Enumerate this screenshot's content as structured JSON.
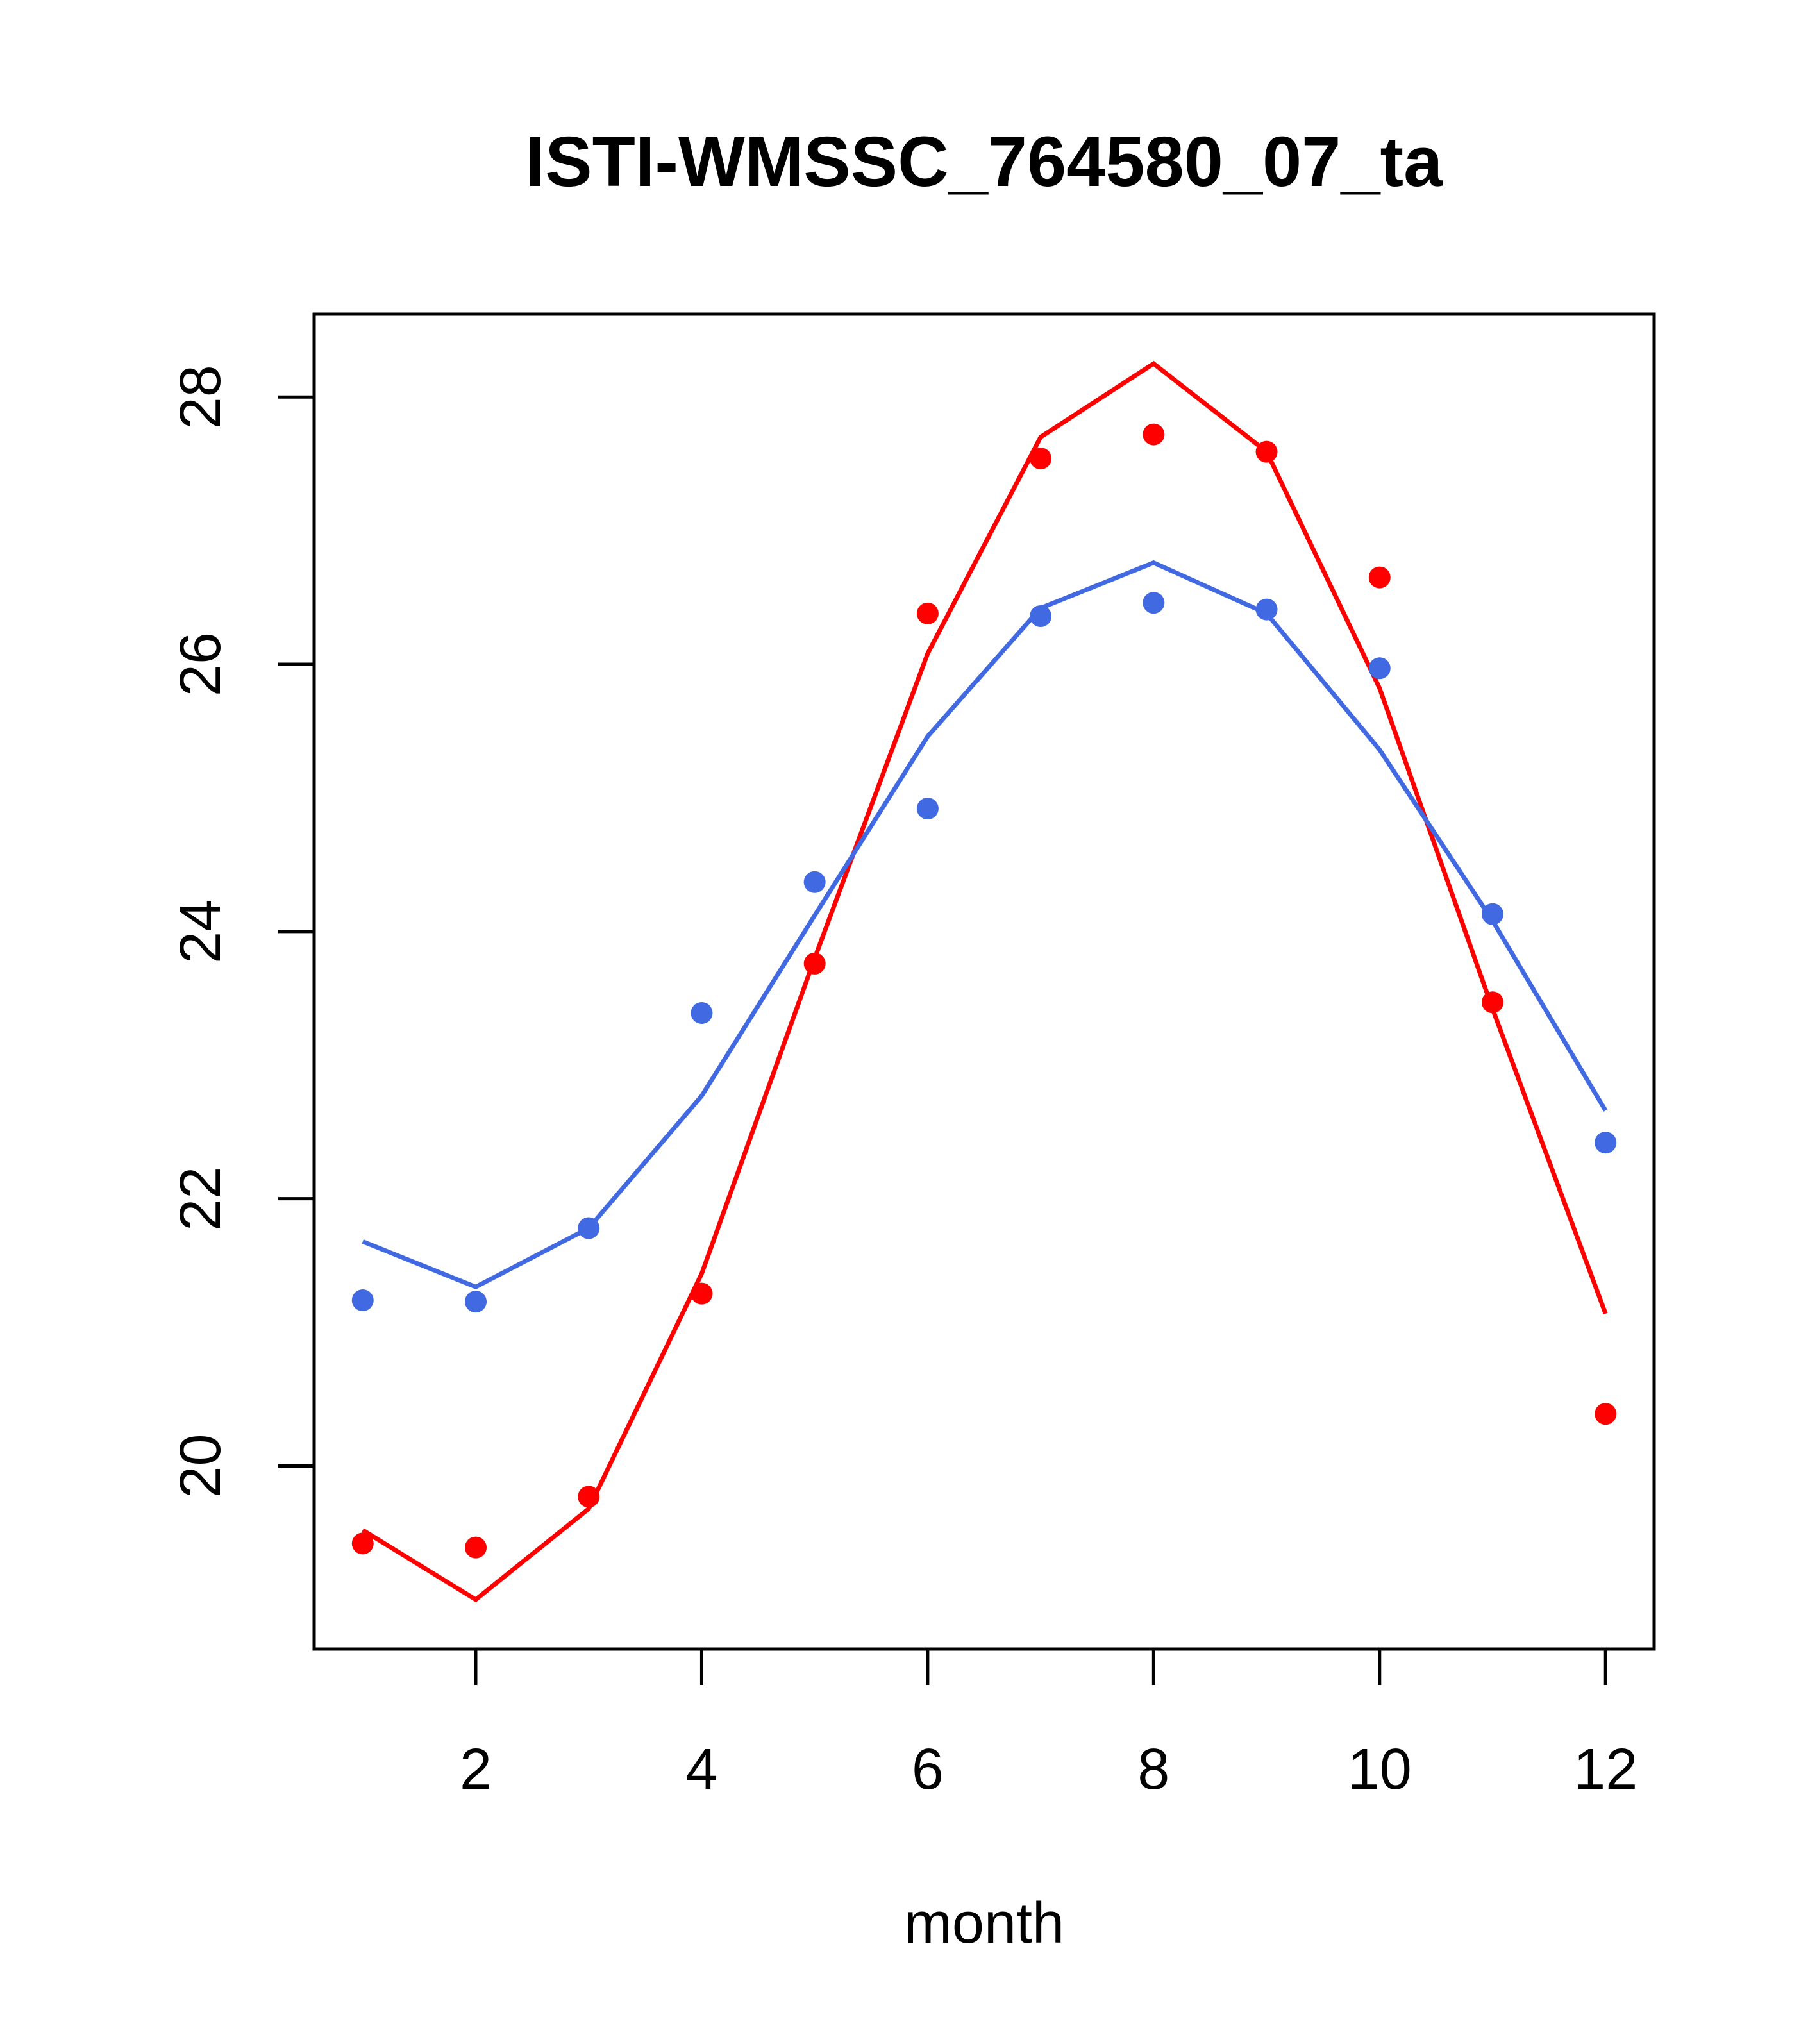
{
  "chart_data": {
    "type": "line",
    "title": "ISTI-WMSSC_764580_07_ta",
    "xlabel": "month",
    "ylabel": "",
    "x": [
      1,
      2,
      3,
      4,
      5,
      6,
      7,
      8,
      9,
      10,
      11,
      12
    ],
    "xlim": [
      0.57,
      12.43
    ],
    "ylim": [
      18.63,
      28.62
    ],
    "xticks": [
      2,
      4,
      6,
      8,
      10,
      12
    ],
    "yticks": [
      20,
      22,
      24,
      26,
      28
    ],
    "grid": false,
    "series": [
      {
        "color": "#ff0000",
        "line": [
          19.52,
          19.0,
          19.68,
          21.44,
          23.8,
          26.08,
          27.7,
          28.25,
          27.59,
          25.82,
          23.42,
          21.14
        ],
        "points": [
          19.42,
          19.39,
          19.77,
          21.29,
          23.76,
          26.38,
          27.54,
          27.72,
          27.59,
          26.65,
          23.47,
          20.39
        ]
      },
      {
        "color": "#4169e1",
        "line": [
          21.68,
          21.34,
          21.78,
          22.77,
          24.12,
          25.46,
          26.42,
          26.76,
          26.38,
          25.36,
          24.08,
          22.66
        ],
        "points": [
          21.24,
          21.23,
          21.78,
          23.39,
          24.37,
          24.92,
          26.36,
          26.46,
          26.41,
          25.97,
          24.13,
          22.42
        ]
      }
    ]
  }
}
